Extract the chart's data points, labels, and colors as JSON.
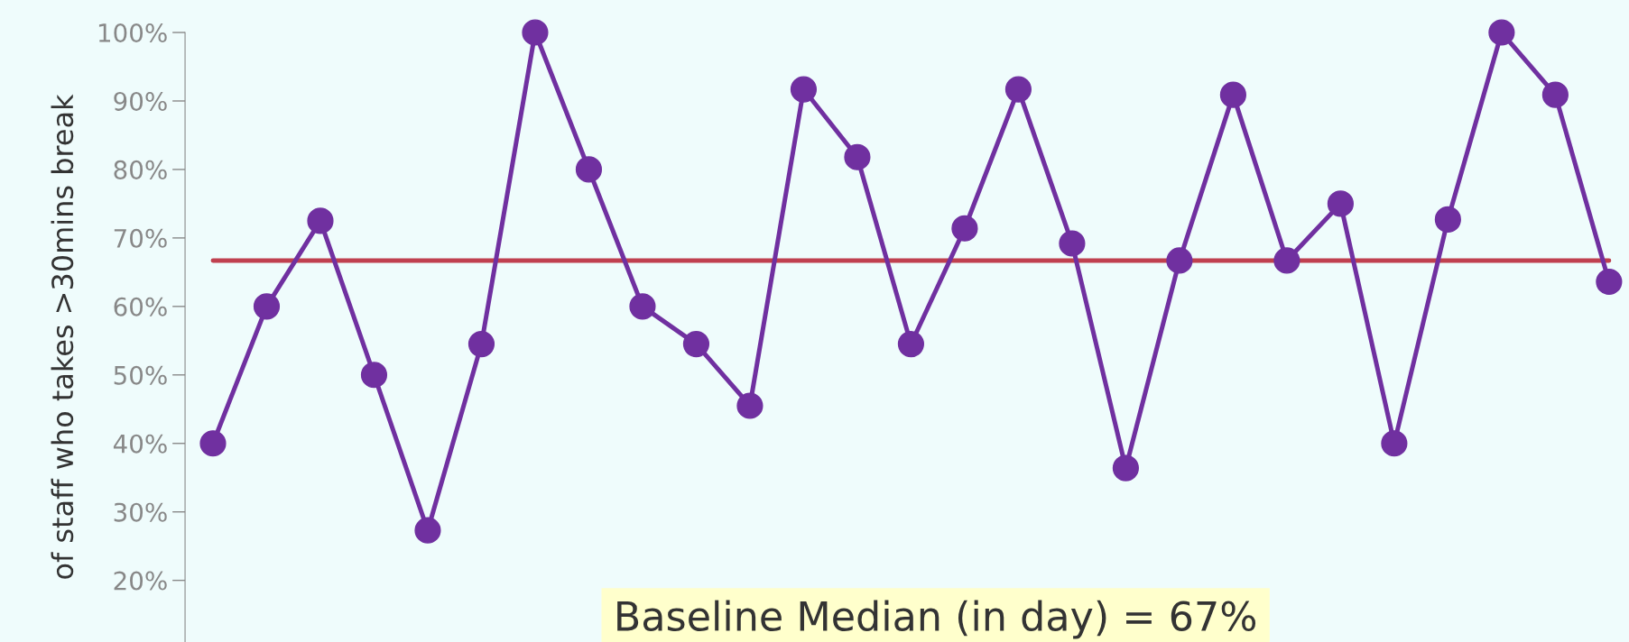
{
  "chart_data": {
    "type": "line",
    "ylabel": "of staff who takes >30mins break",
    "categories": [
      null,
      null,
      null,
      null,
      null,
      null,
      null,
      null,
      null,
      null,
      null,
      null,
      null,
      null,
      null,
      null,
      null,
      null,
      null,
      null,
      null,
      null,
      null,
      null,
      null,
      null,
      null
    ],
    "series": [
      {
        "color": "#7030a0",
        "values": [
          40,
          60,
          72.5,
          50,
          27.3,
          54.5,
          100,
          80,
          60,
          54.5,
          45.5,
          91.7,
          81.8,
          54.5,
          71.4,
          91.7,
          69.2,
          36.4,
          66.7,
          90.9,
          66.7,
          75,
          40,
          72.7,
          100,
          90.9,
          63.6
        ]
      }
    ],
    "ylim": [
      11,
      100
    ],
    "yticks": [
      {
        "value": 20,
        "label": "20%"
      },
      {
        "value": 30,
        "label": "30%"
      },
      {
        "value": 40,
        "label": "40%"
      },
      {
        "value": 50,
        "label": "50%"
      },
      {
        "value": 60,
        "label": "60%"
      },
      {
        "value": 70,
        "label": "70%"
      },
      {
        "value": 80,
        "label": "80%"
      },
      {
        "value": 90,
        "label": "90%"
      },
      {
        "value": 100,
        "label": "100%"
      }
    ],
    "tick_labels": "y",
    "marker": "circle",
    "line_style": "solid",
    "grid": false,
    "legend": false,
    "annotations": [
      "Baseline Median (in day) = 67%"
    ],
    "ref_lines": [
      {
        "axis": "y",
        "value": 66.7,
        "color": "#c0404f"
      }
    ]
  }
}
